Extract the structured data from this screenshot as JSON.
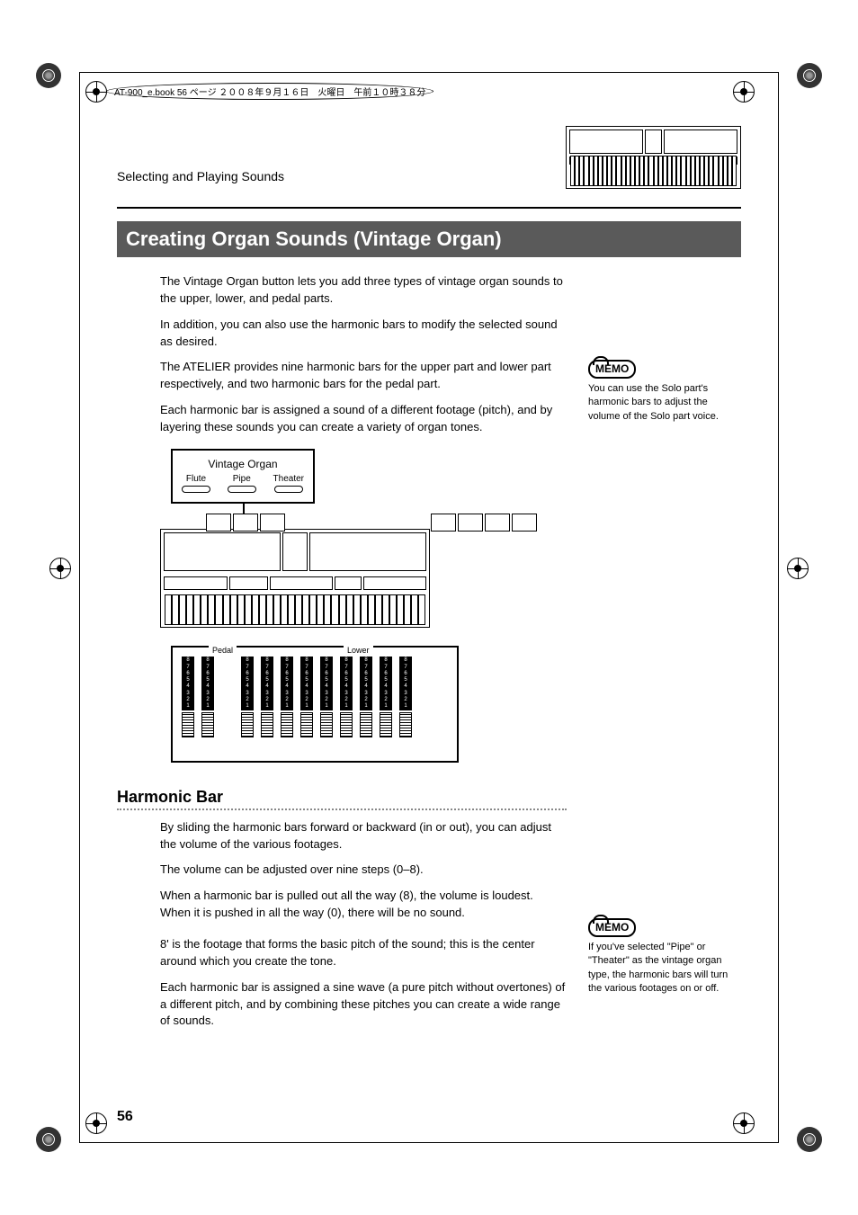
{
  "meta": {
    "header_text": "AT-900_e.book  56 ページ  ２００８年９月１６日　火曜日　午前１０時３８分"
  },
  "section_label": "Selecting and Playing Sounds",
  "title": "Creating Organ Sounds (Vintage Organ)",
  "paragraphs": {
    "p1": "The Vintage Organ button lets you add three types of vintage organ sounds to the upper, lower, and pedal parts.",
    "p2": "In addition, you can also use the harmonic bars to modify the selected sound as desired.",
    "p3": "The ATELIER provides nine harmonic bars for the upper part and lower part respectively, and two harmonic bars for the pedal part.",
    "p4": "Each harmonic bar is assigned a sound of a different footage (pitch), and by layering these sounds you can create a variety of organ tones."
  },
  "memo1": "You can use the Solo part's harmonic bars to adjust the volume of the Solo part voice.",
  "vintage_box": {
    "title": "Vintage Organ",
    "buttons": [
      "Flute",
      "Pipe",
      "Theater"
    ]
  },
  "drawbar": {
    "group_labels": {
      "pedal": "Pedal",
      "lower": "Lower"
    },
    "scale": [
      "8",
      "7",
      "6",
      "5",
      "4",
      "3",
      "2",
      "1"
    ],
    "pedal_count": 2,
    "lower_count": 9
  },
  "harmonic": {
    "heading": "Harmonic Bar",
    "p1": "By sliding the harmonic bars forward or backward (in or out), you can adjust the volume of the various footages.",
    "p2": "The volume can be adjusted over nine steps (0–8).",
    "p3": "When a harmonic bar is pulled out all the way (8), the volume is loudest. When it is pushed in all the way (0), there will be no sound.",
    "p4": "8' is the footage that forms the basic pitch of the sound; this is the center around which you create the tone.",
    "p5": "Each harmonic bar is assigned a sine wave (a pure pitch without overtones) of a different pitch, and by combining these pitches you can create a wide range of sounds."
  },
  "memo2": "If you've selected \"Pipe\" or \"Theater\" as the vintage organ type, the harmonic bars will turn the various footages on or off.",
  "page_number": "56",
  "colors": {
    "title_bg": "#5a5a5a",
    "title_fg": "#ffffff",
    "text": "#000000"
  }
}
